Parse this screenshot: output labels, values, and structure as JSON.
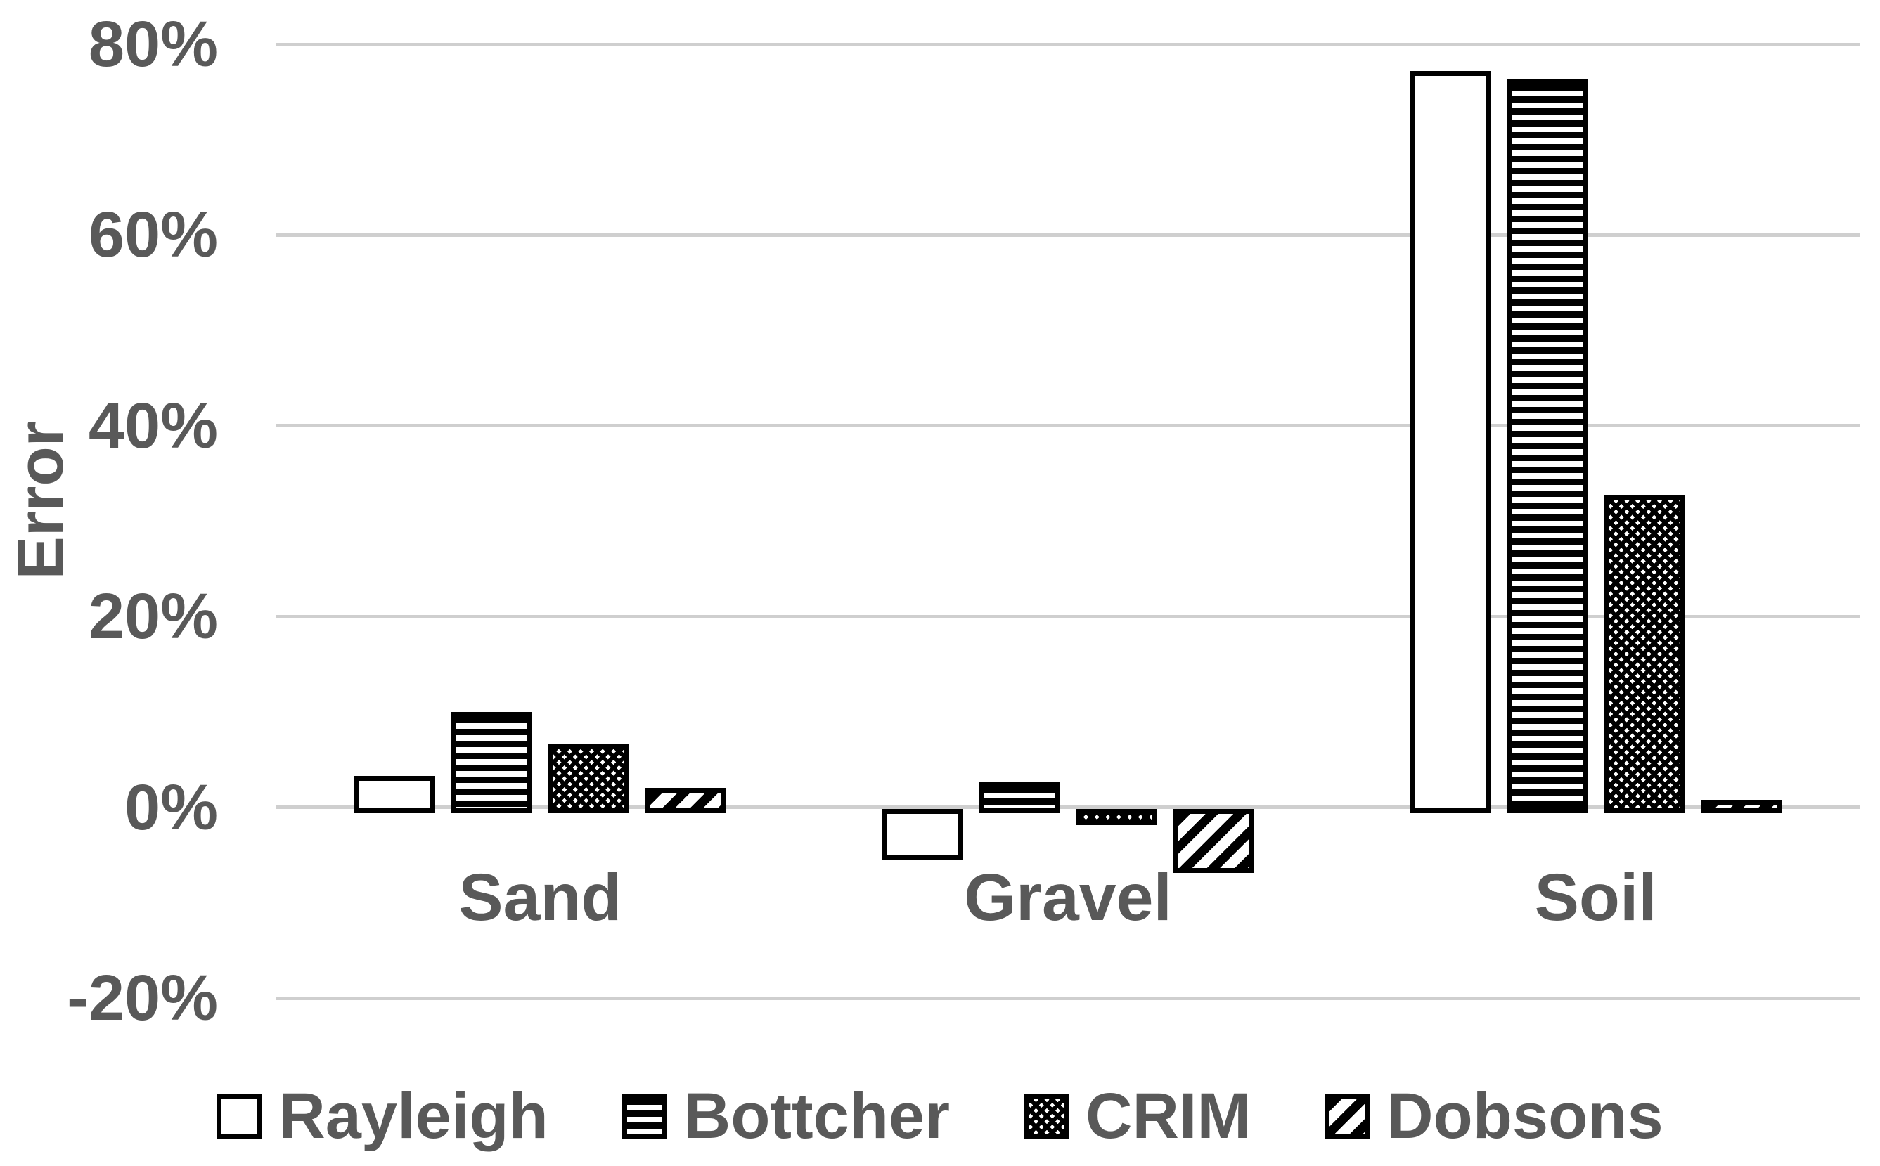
{
  "chart_data": {
    "type": "bar",
    "title": "",
    "xlabel": "",
    "ylabel": "Error",
    "categories": [
      "Sand",
      "Gravel",
      "Soil"
    ],
    "series": [
      {
        "name": "Rayleigh",
        "pattern": "solid-white",
        "values": [
          3.3,
          -5.5,
          77.2
        ]
      },
      {
        "name": "Bottcher",
        "pattern": "horizontal-stripes",
        "values": [
          10.0,
          2.7,
          76.3
        ]
      },
      {
        "name": "CRIM",
        "pattern": "crosshatch-dots",
        "values": [
          6.6,
          -1.9,
          32.8
        ]
      },
      {
        "name": "Dobsons",
        "pattern": "diagonal-stripes",
        "values": [
          2.0,
          -6.9,
          0.8
        ]
      }
    ],
    "yticks": [
      {
        "label": "80%",
        "value": 80
      },
      {
        "label": "60%",
        "value": 60
      },
      {
        "label": "40%",
        "value": 40
      },
      {
        "label": "20%",
        "value": 20
      },
      {
        "label": "0%",
        "value": 0
      },
      {
        "label": "-20%",
        "value": -20
      }
    ],
    "ylim": [
      -20,
      80
    ],
    "grid": true,
    "legend_position": "bottom",
    "colors": {
      "bar_stroke": "#000000",
      "bar_fill": "#ffffff",
      "text": "#595959",
      "gridline": "#cfcfcf",
      "background": "#ffffff"
    }
  }
}
